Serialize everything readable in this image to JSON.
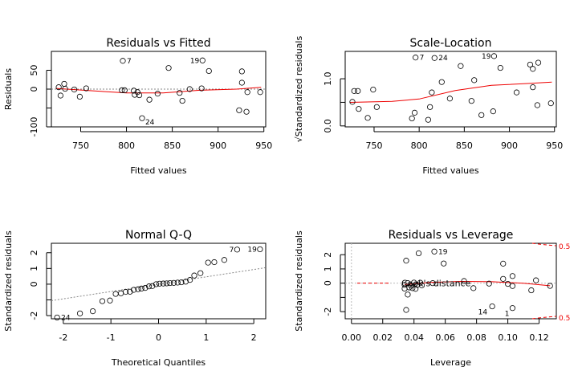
{
  "chart_data": [
    {
      "type": "scatter",
      "title": "Residuals vs Fitted",
      "xlabel": "Fitted values",
      "ylabel": "Residuals",
      "xlim": [
        718,
        952
      ],
      "ylim": [
        -100,
        100
      ],
      "xticks": [
        750,
        800,
        850,
        900,
        950
      ],
      "yticks": [
        -100,
        -50,
        0,
        50
      ],
      "ytick_labels": [
        "-100",
        "",
        "0",
        "50"
      ],
      "grid": false,
      "reference_line": 0,
      "points": [
        {
          "x": 726,
          "y": 5
        },
        {
          "x": 728,
          "y": -17
        },
        {
          "x": 732,
          "y": 14
        },
        {
          "x": 733,
          "y": 1
        },
        {
          "x": 743,
          "y": -1
        },
        {
          "x": 749,
          "y": -20
        },
        {
          "x": 756,
          "y": 2
        },
        {
          "x": 795,
          "y": -3
        },
        {
          "x": 796,
          "y": 75,
          "label": "7"
        },
        {
          "x": 798,
          "y": -3
        },
        {
          "x": 808,
          "y": -4
        },
        {
          "x": 809,
          "y": -15
        },
        {
          "x": 812,
          "y": -8
        },
        {
          "x": 814,
          "y": -16
        },
        {
          "x": 817,
          "y": -77,
          "label": "24"
        },
        {
          "x": 825,
          "y": -28
        },
        {
          "x": 834,
          "y": -12
        },
        {
          "x": 846,
          "y": 56
        },
        {
          "x": 858,
          "y": -10
        },
        {
          "x": 861,
          "y": -31
        },
        {
          "x": 869,
          "y": 0
        },
        {
          "x": 882,
          "y": 2
        },
        {
          "x": 883,
          "y": 76,
          "label": "19"
        },
        {
          "x": 890,
          "y": 48
        },
        {
          "x": 923,
          "y": -56
        },
        {
          "x": 926,
          "y": 47
        },
        {
          "x": 926,
          "y": 17
        },
        {
          "x": 931,
          "y": -60
        },
        {
          "x": 932,
          "y": -8
        },
        {
          "x": 946,
          "y": -8
        }
      ],
      "smooth": [
        [
          723,
          2
        ],
        [
          760,
          -4
        ],
        [
          800,
          -10
        ],
        [
          840,
          -10
        ],
        [
          880,
          -3
        ],
        [
          920,
          0
        ],
        [
          947,
          5
        ]
      ]
    },
    {
      "type": "scatter",
      "title": "Scale-Location",
      "xlabel": "Fitted values",
      "ylabel": "√Standardized residuals",
      "xlim": [
        718,
        952
      ],
      "ylim": [
        -0.02,
        1.58
      ],
      "xticks": [
        750,
        800,
        850,
        900,
        950
      ],
      "yticks": [
        0,
        0.5,
        1.0
      ],
      "ytick_labels": [
        "0.0",
        "",
        "1.0"
      ],
      "grid": false,
      "points": [
        {
          "x": 726,
          "y": 0.51
        },
        {
          "x": 728,
          "y": 0.74
        },
        {
          "x": 732,
          "y": 0.74
        },
        {
          "x": 733,
          "y": 0.36
        },
        {
          "x": 743,
          "y": 0.17
        },
        {
          "x": 749,
          "y": 0.77
        },
        {
          "x": 753,
          "y": 0.4
        },
        {
          "x": 792,
          "y": 0.16
        },
        {
          "x": 795,
          "y": 0.28
        },
        {
          "x": 796,
          "y": 1.45,
          "label": "7"
        },
        {
          "x": 810,
          "y": 0.13
        },
        {
          "x": 812,
          "y": 0.4
        },
        {
          "x": 814,
          "y": 0.71
        },
        {
          "x": 817,
          "y": 1.44,
          "label": "24"
        },
        {
          "x": 825,
          "y": 0.93
        },
        {
          "x": 834,
          "y": 0.58
        },
        {
          "x": 846,
          "y": 1.27
        },
        {
          "x": 858,
          "y": 0.53
        },
        {
          "x": 861,
          "y": 0.97
        },
        {
          "x": 869,
          "y": 0.23
        },
        {
          "x": 882,
          "y": 0.31
        },
        {
          "x": 883,
          "y": 1.48,
          "label": "19"
        },
        {
          "x": 890,
          "y": 1.23
        },
        {
          "x": 923,
          "y": 1.3
        },
        {
          "x": 926,
          "y": 1.21
        },
        {
          "x": 926,
          "y": 0.82
        },
        {
          "x": 931,
          "y": 0.44
        },
        {
          "x": 932,
          "y": 1.34
        },
        {
          "x": 946,
          "y": 0.48
        },
        {
          "x": 908,
          "y": 0.71
        }
      ],
      "smooth": [
        [
          723,
          0.5
        ],
        [
          770,
          0.52
        ],
        [
          800,
          0.57
        ],
        [
          840,
          0.75
        ],
        [
          880,
          0.86
        ],
        [
          920,
          0.9
        ],
        [
          947,
          0.93
        ]
      ]
    },
    {
      "type": "scatter",
      "title": "Normal Q-Q",
      "xlabel": "Theoretical Quantiles",
      "ylabel": "Standardized residuals",
      "xlim": [
        -2.25,
        2.25
      ],
      "ylim": [
        -2.2,
        2.6
      ],
      "xticks": [
        -2,
        -1,
        0,
        1,
        2
      ],
      "yticks": [
        -2,
        -1,
        0,
        1,
        2
      ],
      "ytick_labels": [
        "-2",
        "",
        "0",
        "1",
        "2"
      ],
      "grid": false,
      "qq_line": [
        [
          -2.25,
          -1.05
        ],
        [
          2.25,
          1.05
        ]
      ],
      "points": [
        {
          "x": -2.13,
          "y": -2.12,
          "label": "24"
        },
        {
          "x": -1.65,
          "y": -1.86
        },
        {
          "x": -1.38,
          "y": -1.72
        },
        {
          "x": -1.18,
          "y": -1.08
        },
        {
          "x": -1.02,
          "y": -1.04
        },
        {
          "x": -0.9,
          "y": -0.62
        },
        {
          "x": -0.79,
          "y": -0.58
        },
        {
          "x": -0.69,
          "y": -0.49
        },
        {
          "x": -0.6,
          "y": -0.48
        },
        {
          "x": -0.52,
          "y": -0.36
        },
        {
          "x": -0.43,
          "y": -0.32
        },
        {
          "x": -0.36,
          "y": -0.28
        },
        {
          "x": -0.28,
          "y": -0.24
        },
        {
          "x": -0.2,
          "y": -0.14
        },
        {
          "x": -0.13,
          "y": -0.12
        },
        {
          "x": -0.05,
          "y": 0.0
        },
        {
          "x": 0.02,
          "y": 0.03
        },
        {
          "x": 0.1,
          "y": 0.04
        },
        {
          "x": 0.17,
          "y": 0.05
        },
        {
          "x": 0.24,
          "y": 0.07
        },
        {
          "x": 0.32,
          "y": 0.08
        },
        {
          "x": 0.4,
          "y": 0.1
        },
        {
          "x": 0.48,
          "y": 0.12
        },
        {
          "x": 0.57,
          "y": 0.16
        },
        {
          "x": 0.66,
          "y": 0.27
        },
        {
          "x": 0.75,
          "y": 0.55
        },
        {
          "x": 0.88,
          "y": 0.7
        },
        {
          "x": 1.04,
          "y": 1.37
        },
        {
          "x": 1.17,
          "y": 1.4
        },
        {
          "x": 1.38,
          "y": 1.54
        },
        {
          "x": 1.65,
          "y": 2.2,
          "label": "7"
        },
        {
          "x": 2.13,
          "y": 2.22,
          "label": "19"
        }
      ]
    },
    {
      "type": "scatter",
      "title": "Residuals vs Leverage",
      "xlabel": "Leverage",
      "ylabel": "Standardized residuals",
      "xlim": [
        -0.004,
        0.131
      ],
      "ylim": [
        -2.5,
        2.8
      ],
      "xticks": [
        0.0,
        0.02,
        0.04,
        0.06,
        0.08,
        0.1,
        0.12
      ],
      "xtick_labels": [
        "0.00",
        "0.02",
        "0.04",
        "0.06",
        "0.08",
        "0.10",
        "0.12"
      ],
      "yticks": [
        -2,
        -1,
        0,
        1,
        2
      ],
      "ytick_labels": [
        "-2",
        "",
        "0",
        "1",
        "2"
      ],
      "grid": false,
      "cooks_legend": "Cook's distance",
      "cooks_contour_labels": [
        "0.5",
        "0.5"
      ],
      "points": [
        {
          "x": 0.034,
          "y": -0.38
        },
        {
          "x": 0.034,
          "y": -0.12
        },
        {
          "x": 0.035,
          "y": 1.58
        },
        {
          "x": 0.035,
          "y": -1.88
        },
        {
          "x": 0.036,
          "y": 0.0
        },
        {
          "x": 0.036,
          "y": -0.8
        },
        {
          "x": 0.037,
          "y": -0.3
        },
        {
          "x": 0.038,
          "y": -0.17
        },
        {
          "x": 0.039,
          "y": -0.35
        },
        {
          "x": 0.04,
          "y": 0.04
        },
        {
          "x": 0.041,
          "y": -0.4
        },
        {
          "x": 0.042,
          "y": -0.12
        },
        {
          "x": 0.043,
          "y": 2.1
        },
        {
          "x": 0.044,
          "y": 0.03
        },
        {
          "x": 0.045,
          "y": -0.15
        },
        {
          "x": 0.052,
          "y": 0.0
        },
        {
          "x": 0.053,
          "y": 2.22,
          "label": "19"
        },
        {
          "x": 0.059,
          "y": 1.38
        },
        {
          "x": 0.072,
          "y": 0.15
        },
        {
          "x": 0.078,
          "y": -0.35
        },
        {
          "x": 0.088,
          "y": -0.03
        },
        {
          "x": 0.09,
          "y": -1.63,
          "label": "14"
        },
        {
          "x": 0.097,
          "y": 1.37
        },
        {
          "x": 0.097,
          "y": 0.3
        },
        {
          "x": 0.1,
          "y": -0.05
        },
        {
          "x": 0.103,
          "y": -0.2
        },
        {
          "x": 0.103,
          "y": 0.5
        },
        {
          "x": 0.103,
          "y": -1.75,
          "label": "1"
        },
        {
          "x": 0.115,
          "y": -0.5
        },
        {
          "x": 0.118,
          "y": 0.2
        },
        {
          "x": 0.127,
          "y": -0.19
        }
      ],
      "smooth": [
        [
          0.034,
          -0.1
        ],
        [
          0.05,
          0.05
        ],
        [
          0.07,
          0.12
        ],
        [
          0.09,
          0.1
        ],
        [
          0.11,
          0.0
        ],
        [
          0.127,
          -0.18
        ]
      ]
    }
  ]
}
